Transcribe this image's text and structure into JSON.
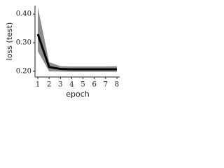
{
  "chart_data": {
    "type": "line",
    "x_label": "epoch",
    "y_label": "loss (test)",
    "x": [
      1,
      2,
      3,
      4,
      5,
      6,
      7,
      8
    ],
    "band": {
      "color": "#8c8c8c",
      "lower": [
        0.27,
        0.2,
        0.199,
        0.198,
        0.198,
        0.198,
        0.198,
        0.198
      ],
      "upper": [
        0.425,
        0.232,
        0.218,
        0.217,
        0.217,
        0.217,
        0.217,
        0.218
      ]
    },
    "series": [
      {
        "color": "#000000",
        "values": [
          0.33,
          0.215,
          0.208,
          0.207,
          0.207,
          0.207,
          0.207,
          0.207
        ]
      }
    ],
    "xlim": [
      0.75,
      8.25
    ],
    "ylim": [
      0.18,
      0.43
    ],
    "xticks": [
      1,
      2,
      3,
      4,
      5,
      6,
      7,
      8
    ],
    "yticks": [
      {
        "value": 0.2,
        "label": "0.20"
      },
      {
        "value": 0.3,
        "label": "0.30"
      },
      {
        "value": 0.4,
        "label": "0.40"
      }
    ],
    "grid": false
  }
}
